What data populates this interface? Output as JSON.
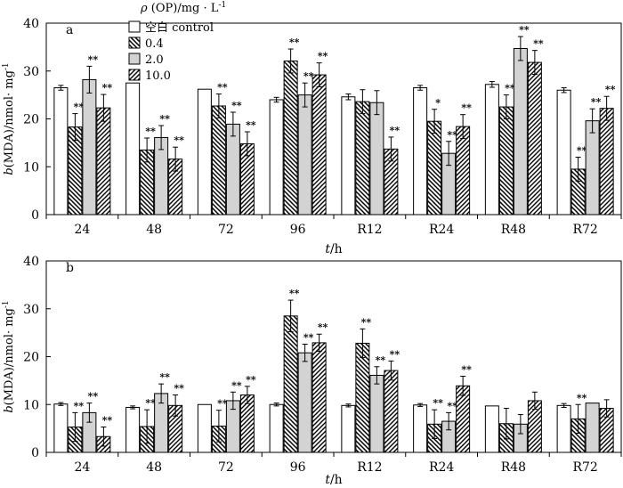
{
  "chart_data": [
    {
      "type": "bar",
      "panel_label": "a",
      "categories": [
        "24",
        "48",
        "72",
        "96",
        "R12",
        "R24",
        "R48",
        "R72"
      ],
      "xlabel": "t/h",
      "ylabel": "b(MDA)/nmol· mg-1",
      "ylim": [
        0,
        40
      ],
      "yticks": [
        0,
        10,
        20,
        30,
        40
      ],
      "legend": {
        "title": "ρ (OP)/mg · L-1",
        "position": "top-left",
        "entries": [
          "空白 control",
          "0.4",
          "2.0",
          "10.0"
        ]
      },
      "series": [
        {
          "name": "空白 control",
          "values": [
            26.5,
            27.5,
            26.2,
            24.0,
            24.6,
            26.5,
            27.2,
            26.0
          ],
          "errors": [
            0.5,
            0,
            0,
            0.5,
            0.6,
            0.5,
            0.6,
            0.5
          ],
          "sig": [
            "",
            "",
            "",
            "",
            "",
            "",
            "",
            ""
          ]
        },
        {
          "name": "0.4",
          "values": [
            18.3,
            13.5,
            22.7,
            32.1,
            23.6,
            19.5,
            22.5,
            9.5
          ],
          "errors": [
            2.8,
            2.5,
            2.5,
            2.5,
            2.5,
            2.5,
            2.5,
            2.5
          ],
          "sig": [
            "**",
            "**",
            "**",
            "**",
            "",
            "*",
            "**",
            "**"
          ]
        },
        {
          "name": "2.0",
          "values": [
            28.2,
            16.1,
            18.9,
            25.0,
            23.4,
            12.8,
            34.7,
            19.6
          ],
          "errors": [
            2.8,
            2.5,
            2.5,
            2.5,
            2.5,
            2.5,
            2.5,
            2.5
          ],
          "sig": [
            "**",
            "**",
            "**",
            "**",
            "",
            "**",
            "**",
            "**"
          ]
        },
        {
          "name": "10.0",
          "values": [
            22.3,
            11.6,
            14.8,
            29.2,
            13.7,
            18.4,
            31.8,
            22.2
          ],
          "errors": [
            2.8,
            2.5,
            2.5,
            2.5,
            2.5,
            2.5,
            2.5,
            2.5
          ],
          "sig": [
            "**",
            "**",
            "**",
            "**",
            "**",
            "**",
            "**",
            "**"
          ]
        }
      ]
    },
    {
      "type": "bar",
      "panel_label": "b",
      "categories": [
        "24",
        "48",
        "72",
        "96",
        "R12",
        "R24",
        "R48",
        "R72"
      ],
      "xlabel": "t/h",
      "ylabel": "b(MDA)/nmol· mg-1",
      "ylim": [
        0,
        40
      ],
      "yticks": [
        0,
        10,
        20,
        30,
        40
      ],
      "series": [
        {
          "name": "空白 control",
          "values": [
            10.1,
            9.4,
            10.0,
            10.0,
            9.8,
            9.9,
            9.7,
            9.8
          ],
          "errors": [
            0.3,
            0.3,
            0,
            0.3,
            0.3,
            0.3,
            0,
            0.4
          ],
          "sig": [
            "",
            "",
            "",
            "",
            "",
            "",
            "",
            ""
          ]
        },
        {
          "name": "0.4",
          "values": [
            5.3,
            5.4,
            5.5,
            28.5,
            22.8,
            5.9,
            6.0,
            7.0
          ],
          "errors": [
            3.0,
            3.5,
            3.3,
            3.3,
            3.0,
            3.0,
            3.2,
            3.0
          ],
          "sig": [
            "**",
            "**",
            "**",
            "**",
            "**",
            "**",
            "",
            "**"
          ]
        },
        {
          "name": "2.0",
          "values": [
            8.3,
            12.3,
            10.8,
            20.8,
            16.1,
            6.5,
            5.9,
            10.3
          ],
          "errors": [
            2.0,
            2.0,
            1.8,
            1.8,
            1.8,
            1.8,
            2.0,
            0
          ],
          "sig": [
            "**",
            "**",
            "**",
            "**",
            "**",
            "**",
            "",
            ""
          ]
        },
        {
          "name": "10.0",
          "values": [
            3.3,
            9.8,
            12.0,
            22.9,
            17.1,
            13.9,
            10.8,
            9.2
          ],
          "errors": [
            2.0,
            2.2,
            1.8,
            1.8,
            2.0,
            2.0,
            1.8,
            1.8
          ],
          "sig": [
            "**",
            "**",
            "**",
            "**",
            "**",
            "**",
            "",
            ""
          ]
        }
      ]
    }
  ]
}
